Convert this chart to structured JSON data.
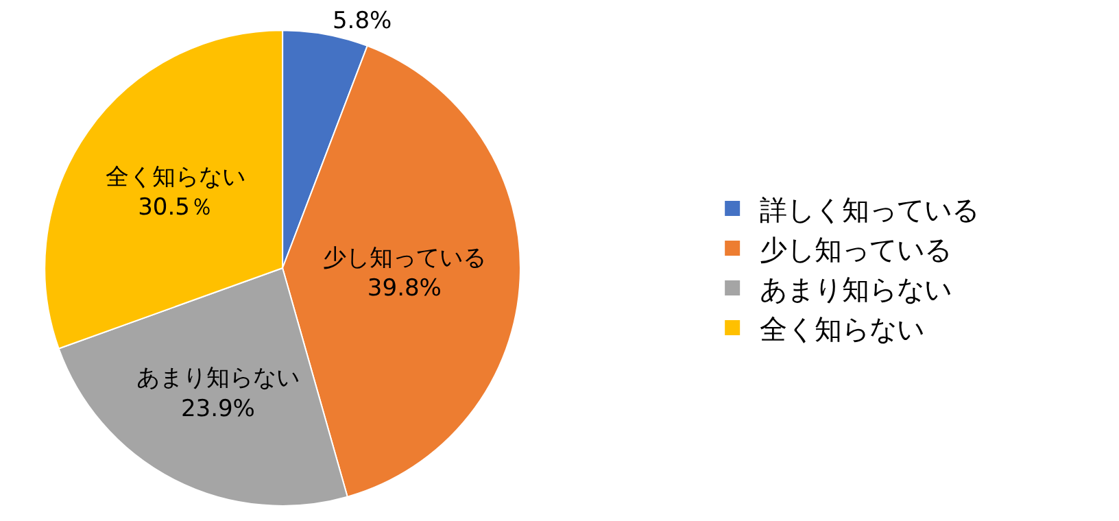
{
  "chart_data": {
    "type": "pie",
    "categories": [
      "詳しく知っている",
      "少し知っている",
      "あまり知らない",
      "全く知らない"
    ],
    "values": [
      5.8,
      39.8,
      23.9,
      30.5
    ],
    "colors": [
      "#4472c4",
      "#ed7d31",
      "#a5a5a5",
      "#ffc000"
    ],
    "value_labels": [
      "5.8%",
      "少し知っている\n39.8%",
      "あまり知らない\n23.9%",
      "全く知らない\n30.5％"
    ],
    "legend": "right"
  }
}
